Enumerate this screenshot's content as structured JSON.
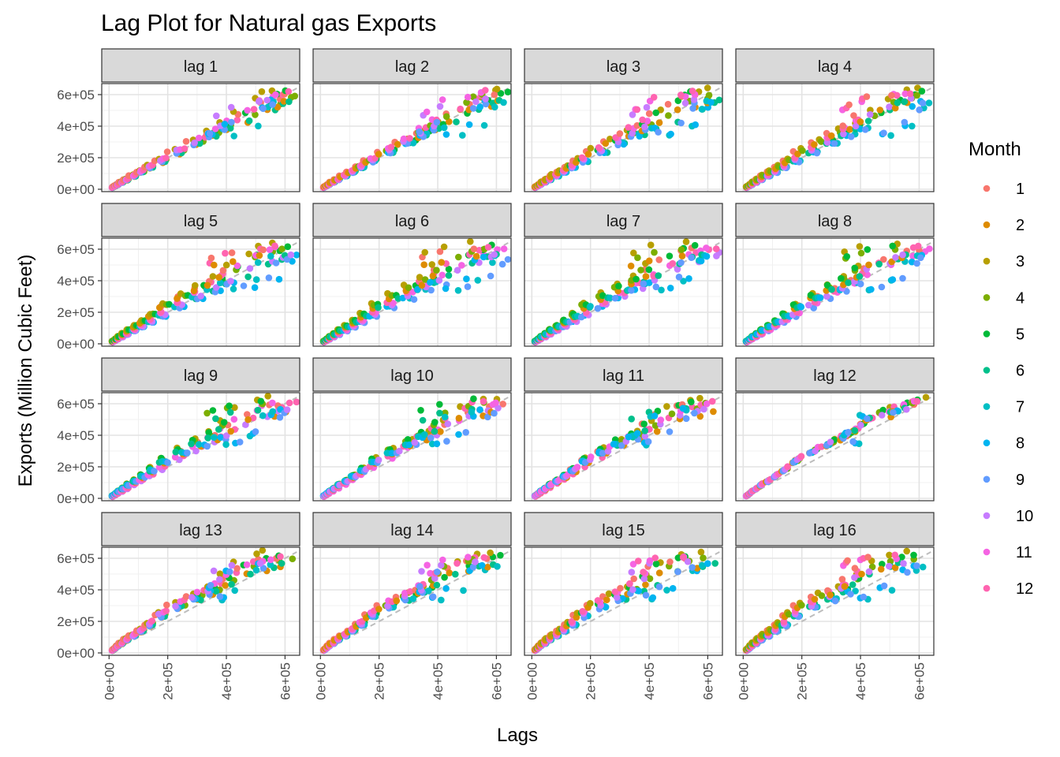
{
  "chart_data": {
    "type": "scatter",
    "title": "Lag Plot for Natural gas Exports",
    "xlabel": "Lags",
    "ylabel": "Exports (Million Cubic Feet)",
    "legend": {
      "title": "Month",
      "position": "right",
      "items": [
        "1",
        "2",
        "3",
        "4",
        "5",
        "6",
        "7",
        "8",
        "9",
        "10",
        "11",
        "12"
      ],
      "colors": [
        "#F8766D",
        "#DE8C00",
        "#B79F00",
        "#7CAE00",
        "#00BA38",
        "#00C08B",
        "#00BFC4",
        "#00B4F0",
        "#619CFF",
        "#C77CFF",
        "#F564E3",
        "#FF64B0"
      ]
    },
    "facets": [
      "lag 1",
      "lag 2",
      "lag 3",
      "lag 4",
      "lag 5",
      "lag 6",
      "lag 7",
      "lag 8",
      "lag 9",
      "lag 10",
      "lag 11",
      "lag 12",
      "lag 13",
      "lag 14",
      "lag 15",
      "lag 16"
    ],
    "x_ticks": [
      0,
      200000,
      400000,
      600000
    ],
    "x_tick_labels": [
      "0e+00",
      "2e+05",
      "4e+05",
      "6e+05"
    ],
    "y_ticks": [
      0,
      200000,
      400000,
      600000
    ],
    "y_tick_labels": [
      "0e+00",
      "2e+05",
      "4e+05",
      "6e+05"
    ],
    "xlim": [
      -25000,
      650000
    ],
    "ylim": [
      -15000,
      670000
    ],
    "grid": true,
    "reference_line": "y = x (dashed grey)",
    "series": [
      {
        "month": 1,
        "values": [
          12000,
          16000,
          22000,
          30000,
          45000,
          62000,
          86000,
          110000,
          140000,
          180000,
          240000,
          300000,
          355000,
          400000,
          470000,
          540000,
          585000,
          600000
        ]
      },
      {
        "month": 2,
        "values": [
          11000,
          15000,
          20000,
          28000,
          42000,
          58000,
          80000,
          105000,
          132000,
          170000,
          225000,
          285000,
          335000,
          375000,
          425000,
          500000,
          520000,
          550000
        ]
      },
      {
        "month": 3,
        "values": [
          12000,
          17000,
          23000,
          32000,
          48000,
          66000,
          92000,
          118000,
          150000,
          192000,
          255000,
          320000,
          378000,
          425000,
          500000,
          580000,
          620000,
          640000
        ]
      },
      {
        "month": 4,
        "values": [
          11000,
          16000,
          22000,
          31000,
          46000,
          63000,
          88000,
          113000,
          144000,
          185000,
          245000,
          305000,
          360000,
          405000,
          465000,
          545000,
          580000,
          600000
        ]
      },
      {
        "month": 5,
        "values": [
          12000,
          17000,
          23000,
          32000,
          47000,
          65000,
          90000,
          116000,
          148000,
          190000,
          250000,
          312000,
          368000,
          415000,
          480000,
          560000,
          600000,
          620000
        ]
      },
      {
        "month": 6,
        "values": [
          11000,
          16000,
          22000,
          30000,
          44000,
          60000,
          84000,
          108000,
          138000,
          176000,
          232000,
          290000,
          340000,
          385000,
          430000,
          505000,
          545000,
          565000
        ]
      },
      {
        "month": 7,
        "values": [
          11000,
          16000,
          22000,
          31000,
          45000,
          62000,
          86000,
          110000,
          140000,
          178000,
          235000,
          292000,
          345000,
          390000,
          340000,
          400000,
          520000,
          555000
        ]
      },
      {
        "month": 8,
        "values": [
          11000,
          16000,
          22000,
          31000,
          45000,
          61000,
          85000,
          109000,
          139000,
          177000,
          233000,
          290000,
          342000,
          388000,
          350000,
          410000,
          525000,
          560000
        ]
      },
      {
        "month": 9,
        "values": [
          10000,
          15000,
          21000,
          29000,
          43000,
          59000,
          82000,
          106000,
          135000,
          172000,
          228000,
          285000,
          335000,
          378000,
          360000,
          420000,
          510000,
          545000
        ]
      },
      {
        "month": 10,
        "values": [
          10000,
          15000,
          21000,
          30000,
          44000,
          61000,
          85000,
          110000,
          142000,
          185000,
          245000,
          300000,
          355000,
          400000,
          470000,
          520000,
          555000,
          570000
        ]
      },
      {
        "month": 11,
        "values": [
          11000,
          16000,
          22000,
          31000,
          46000,
          64000,
          90000,
          118000,
          150000,
          195000,
          258000,
          325000,
          385000,
          435000,
          500000,
          560000,
          590000,
          605000
        ]
      },
      {
        "month": 12,
        "values": [
          12000,
          17000,
          24000,
          33000,
          48000,
          67000,
          94000,
          122000,
          155000,
          200000,
          265000,
          330000,
          390000,
          440000,
          510000,
          575000,
          600000,
          615000
        ]
      }
    ]
  }
}
